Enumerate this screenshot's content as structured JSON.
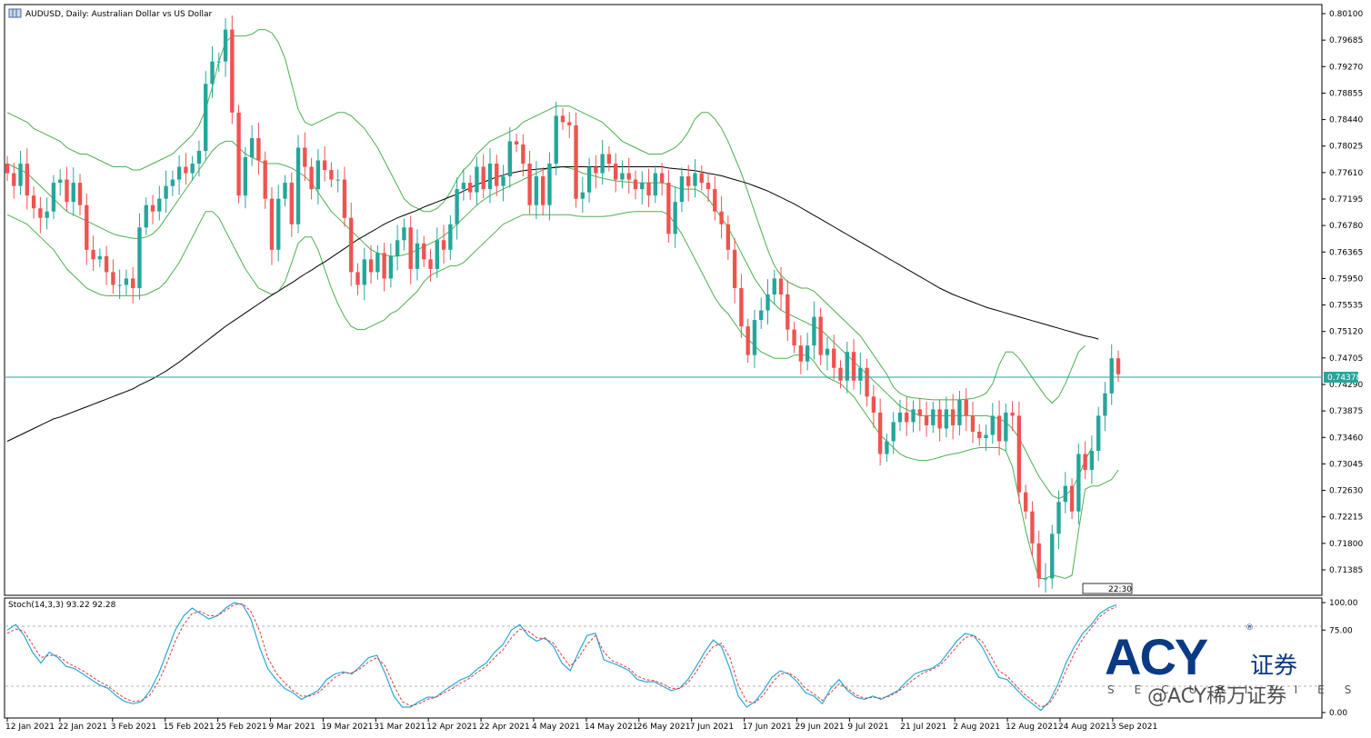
{
  "chart_data": {
    "type": "candlestick",
    "title": "AUDUSD, Daily:  Australian Dollar vs US Dollar",
    "current_price_label": "0.74378",
    "time_label": "22:30",
    "colors": {
      "up": "#26a69a",
      "down": "#ef5350",
      "bands": "#4caf50",
      "ma": "#000000",
      "current_line": "#26a69a"
    },
    "y_ticks": [
      "0.80100",
      "0.79685",
      "0.79270",
      "0.78855",
      "0.78440",
      "0.78025",
      "0.77610",
      "0.77195",
      "0.76780",
      "0.76365",
      "0.75950",
      "0.75535",
      "0.75120",
      "0.74705",
      "0.74290",
      "0.73875",
      "0.73460",
      "0.73045",
      "0.72630",
      "0.72215",
      "0.71800",
      "0.71385"
    ],
    "y_range": [
      0.7103,
      0.8021
    ],
    "x_ticks": [
      "12 Jan 2021",
      "22 Jan 2021",
      "3 Feb 2021",
      "15 Feb 2021",
      "25 Feb 2021",
      "9 Mar 2021",
      "19 Mar 2021",
      "31 Mar 2021",
      "12 Apr 2021",
      "22 Apr 2021",
      "4 May 2021",
      "14 May 2021",
      "26 May 2021",
      "7 Jun 2021",
      "17 Jun 2021",
      "29 Jun 2021",
      "9 Jul 2021",
      "21 Jul 2021",
      "2 Aug 2021",
      "12 Aug 2021",
      "24 Aug 2021",
      "3 Sep 2021"
    ],
    "closes": [
      0.776,
      0.774,
      0.7775,
      0.7725,
      0.7705,
      0.769,
      0.77,
      0.7745,
      0.775,
      0.7715,
      0.7745,
      0.771,
      0.764,
      0.7625,
      0.763,
      0.7605,
      0.7585,
      0.7585,
      0.7595,
      0.758,
      0.7675,
      0.771,
      0.77,
      0.772,
      0.774,
      0.775,
      0.777,
      0.776,
      0.7775,
      0.7795,
      0.79,
      0.7935,
      0.7935,
      0.7985,
      0.7855,
      0.7725,
      0.7785,
      0.7815,
      0.778,
      0.772,
      0.764,
      0.772,
      0.7745,
      0.768,
      0.78,
      0.777,
      0.7735,
      0.778,
      0.7765,
      0.775,
      0.775,
      0.769,
      0.7605,
      0.7585,
      0.7625,
      0.7605,
      0.7635,
      0.7595,
      0.763,
      0.7655,
      0.7675,
      0.761,
      0.765,
      0.7625,
      0.761,
      0.7655,
      0.764,
      0.768,
      0.7735,
      0.7745,
      0.773,
      0.777,
      0.7735,
      0.7775,
      0.774,
      0.7755,
      0.781,
      0.7805,
      0.7775,
      0.771,
      0.7755,
      0.771,
      0.7775,
      0.785,
      0.784,
      0.7835,
      0.772,
      0.773,
      0.777,
      0.776,
      0.779,
      0.7775,
      0.775,
      0.776,
      0.775,
      0.7735,
      0.7745,
      0.7725,
      0.776,
      0.7745,
      0.7665,
      0.7715,
      0.7755,
      0.774,
      0.776,
      0.7745,
      0.7735,
      0.77,
      0.768,
      0.764,
      0.758,
      0.752,
      0.7475,
      0.753,
      0.7545,
      0.757,
      0.7595,
      0.757,
      0.7515,
      0.749,
      0.7465,
      0.749,
      0.7535,
      0.7475,
      0.7485,
      0.7455,
      0.7435,
      0.748,
      0.7435,
      0.7455,
      0.741,
      0.7385,
      0.732,
      0.734,
      0.737,
      0.7385,
      0.737,
      0.739,
      0.738,
      0.7365,
      0.739,
      0.736,
      0.739,
      0.7365,
      0.7405,
      0.738,
      0.7355,
      0.7345,
      0.735,
      0.738,
      0.734,
      0.7385,
      0.738,
      0.726,
      0.723,
      0.718,
      0.7125,
      0.7125,
      0.7195,
      0.7245,
      0.727,
      0.723,
      0.732,
      0.7295,
      0.7325,
      0.738,
      0.7415,
      0.747,
      0.7445
    ],
    "upper_band": [
      0.7855,
      0.785,
      0.7845,
      0.784,
      0.783,
      0.7825,
      0.782,
      0.7815,
      0.781,
      0.78,
      0.7795,
      0.779,
      0.779,
      0.7785,
      0.778,
      0.7775,
      0.777,
      0.777,
      0.777,
      0.7765,
      0.7765,
      0.777,
      0.7775,
      0.778,
      0.7785,
      0.779,
      0.78,
      0.781,
      0.782,
      0.7835,
      0.786,
      0.7895,
      0.7935,
      0.7965,
      0.7975,
      0.7975,
      0.7975,
      0.7978,
      0.7985,
      0.7985,
      0.798,
      0.7965,
      0.794,
      0.79,
      0.786,
      0.784,
      0.7835,
      0.784,
      0.7845,
      0.785,
      0.7855,
      0.7855,
      0.785,
      0.784,
      0.783,
      0.7815,
      0.78,
      0.778,
      0.776,
      0.774,
      0.772,
      0.771,
      0.7705,
      0.77,
      0.77,
      0.7705,
      0.7715,
      0.773,
      0.775,
      0.7765,
      0.7775,
      0.779,
      0.78,
      0.781,
      0.7815,
      0.782,
      0.7825,
      0.783,
      0.784,
      0.7845,
      0.785,
      0.7855,
      0.786,
      0.7865,
      0.7865,
      0.7865,
      0.786,
      0.7855,
      0.785,
      0.7845,
      0.784,
      0.783,
      0.782,
      0.781,
      0.7805,
      0.78,
      0.7795,
      0.779,
      0.779,
      0.779,
      0.7795,
      0.78,
      0.781,
      0.7825,
      0.7845,
      0.7855,
      0.7855,
      0.7845,
      0.783,
      0.781,
      0.7785,
      0.776,
      0.773,
      0.77,
      0.767,
      0.764,
      0.7615,
      0.76,
      0.759,
      0.7585,
      0.758,
      0.758,
      0.7575,
      0.7565,
      0.7555,
      0.7545,
      0.7535,
      0.7525,
      0.7515,
      0.7505,
      0.749,
      0.7475,
      0.746,
      0.7445,
      0.7425,
      0.7415,
      0.741,
      0.7408,
      0.7407,
      0.7406,
      0.7405,
      0.7405,
      0.7405,
      0.7405,
      0.7405,
      0.7406,
      0.7407,
      0.741,
      0.7415,
      0.743,
      0.746,
      0.748,
      0.748,
      0.747,
      0.7455,
      0.744,
      0.7425,
      0.741,
      0.74,
      0.741,
      0.743,
      0.7455,
      0.748,
      0.749
    ],
    "middle_band": [
      0.7775,
      0.777,
      0.7765,
      0.776,
      0.775,
      0.774,
      0.773,
      0.772,
      0.771,
      0.77,
      0.7695,
      0.769,
      0.7685,
      0.768,
      0.7675,
      0.767,
      0.7665,
      0.7662,
      0.766,
      0.7658,
      0.7658,
      0.766,
      0.7665,
      0.7675,
      0.769,
      0.7705,
      0.772,
      0.7735,
      0.775,
      0.7765,
      0.778,
      0.7795,
      0.7805,
      0.781,
      0.781,
      0.78,
      0.779,
      0.7785,
      0.778,
      0.7775,
      0.7775,
      0.7775,
      0.7772,
      0.7768,
      0.7762,
      0.7755,
      0.7745,
      0.773,
      0.7715,
      0.77,
      0.769,
      0.768,
      0.767,
      0.766,
      0.765,
      0.764,
      0.7635,
      0.7632,
      0.763,
      0.763,
      0.7632,
      0.7635,
      0.764,
      0.7645,
      0.765,
      0.7655,
      0.7662,
      0.767,
      0.768,
      0.769,
      0.77,
      0.771,
      0.7718,
      0.7725,
      0.773,
      0.7735,
      0.774,
      0.7745,
      0.775,
      0.7755,
      0.776,
      0.7765,
      0.7768,
      0.777,
      0.777,
      0.7768,
      0.7765,
      0.776,
      0.7758,
      0.7755,
      0.7752,
      0.775,
      0.7748,
      0.7747,
      0.7746,
      0.7745,
      0.7745,
      0.7745,
      0.7745,
      0.7745,
      0.7742,
      0.7738,
      0.7735,
      0.7735,
      0.7735,
      0.773,
      0.772,
      0.7705,
      0.769,
      0.7675,
      0.7655,
      0.7635,
      0.7615,
      0.7595,
      0.758,
      0.7565,
      0.7555,
      0.7545,
      0.754,
      0.7535,
      0.753,
      0.7525,
      0.752,
      0.7515,
      0.7505,
      0.7495,
      0.7485,
      0.7475,
      0.7465,
      0.7455,
      0.7445,
      0.7435,
      0.7425,
      0.7415,
      0.7405,
      0.7395,
      0.739,
      0.7385,
      0.738,
      0.738,
      0.738,
      0.738,
      0.738,
      0.738,
      0.738,
      0.738,
      0.738,
      0.738,
      0.738,
      0.7378,
      0.7375,
      0.737,
      0.736,
      0.7345,
      0.7325,
      0.7305,
      0.7285,
      0.727,
      0.7255,
      0.725,
      0.7255,
      0.7265,
      0.7285,
      0.731,
      0.733
    ],
    "lower_band": [
      0.7695,
      0.769,
      0.7685,
      0.768,
      0.767,
      0.766,
      0.765,
      0.764,
      0.7625,
      0.761,
      0.76,
      0.759,
      0.758,
      0.7575,
      0.757,
      0.7568,
      0.7568,
      0.7568,
      0.7568,
      0.7568,
      0.7568,
      0.757,
      0.7575,
      0.758,
      0.759,
      0.7605,
      0.762,
      0.764,
      0.766,
      0.768,
      0.77,
      0.77,
      0.769,
      0.767,
      0.765,
      0.763,
      0.761,
      0.7595,
      0.758,
      0.7575,
      0.757,
      0.7575,
      0.759,
      0.762,
      0.765,
      0.766,
      0.766,
      0.764,
      0.761,
      0.758,
      0.7555,
      0.7535,
      0.752,
      0.7515,
      0.7515,
      0.752,
      0.7525,
      0.753,
      0.754,
      0.7545,
      0.7555,
      0.7565,
      0.7575,
      0.759,
      0.76,
      0.7605,
      0.761,
      0.7615,
      0.7615,
      0.762,
      0.763,
      0.764,
      0.765,
      0.766,
      0.767,
      0.768,
      0.7685,
      0.769,
      0.7695,
      0.7695,
      0.7695,
      0.7695,
      0.7695,
      0.7695,
      0.7695,
      0.7695,
      0.7693,
      0.7692,
      0.7692,
      0.7692,
      0.7692,
      0.7693,
      0.7695,
      0.7697,
      0.7699,
      0.77,
      0.77,
      0.77,
      0.77,
      0.77,
      0.7695,
      0.768,
      0.7665,
      0.7645,
      0.7625,
      0.7605,
      0.7585,
      0.7565,
      0.755,
      0.754,
      0.7525,
      0.751,
      0.75,
      0.749,
      0.748,
      0.7475,
      0.747,
      0.747,
      0.747,
      0.7475,
      0.7475,
      0.7475,
      0.7465,
      0.745,
      0.744,
      0.7435,
      0.743,
      0.742,
      0.741,
      0.7395,
      0.738,
      0.7365,
      0.735,
      0.734,
      0.733,
      0.732,
      0.7315,
      0.7312,
      0.731,
      0.731,
      0.7312,
      0.7315,
      0.7318,
      0.732,
      0.7322,
      0.7325,
      0.7328,
      0.733,
      0.733,
      0.733,
      0.733,
      0.7325,
      0.73,
      0.725,
      0.72,
      0.716,
      0.7125,
      0.7125,
      0.713,
      0.7128,
      0.7125,
      0.713,
      0.72,
      0.7265,
      0.727,
      0.727,
      0.7275,
      0.728,
      0.7295
    ],
    "ma_line": [
      0.734,
      0.7345,
      0.735,
      0.7355,
      0.736,
      0.7365,
      0.737,
      0.7375,
      0.7378,
      0.7382,
      0.7386,
      0.739,
      0.7394,
      0.7398,
      0.7402,
      0.7406,
      0.741,
      0.7414,
      0.7418,
      0.7422,
      0.7428,
      0.7433,
      0.7438,
      0.7444,
      0.745,
      0.7457,
      0.7464,
      0.7472,
      0.748,
      0.7488,
      0.7496,
      0.7504,
      0.7512,
      0.752,
      0.7527,
      0.7534,
      0.7541,
      0.7548,
      0.7555,
      0.7562,
      0.7569,
      0.7575,
      0.7582,
      0.7588,
      0.7595,
      0.7602,
      0.7608,
      0.7615,
      0.7621,
      0.7628,
      0.7635,
      0.7642,
      0.7649,
      0.7656,
      0.7662,
      0.7668,
      0.7674,
      0.768,
      0.7685,
      0.769,
      0.7694,
      0.7698,
      0.7702,
      0.7707,
      0.7711,
      0.7715,
      0.7719,
      0.7723,
      0.7727,
      0.7732,
      0.7737,
      0.7742,
      0.7746,
      0.775,
      0.7754,
      0.7757,
      0.776,
      0.7762,
      0.7764,
      0.7765,
      0.7766,
      0.7767,
      0.7768,
      0.7769,
      0.777,
      0.777,
      0.777,
      0.777,
      0.777,
      0.777,
      0.777,
      0.777,
      0.777,
      0.777,
      0.777,
      0.777,
      0.777,
      0.777,
      0.777,
      0.777,
      0.7768,
      0.7767,
      0.7766,
      0.7765,
      0.7764,
      0.7762,
      0.776,
      0.7758,
      0.7756,
      0.7753,
      0.775,
      0.7747,
      0.7744,
      0.774,
      0.7736,
      0.7732,
      0.7727,
      0.7722,
      0.7717,
      0.7712,
      0.7706,
      0.77,
      0.7694,
      0.7688,
      0.7682,
      0.7676,
      0.767,
      0.7664,
      0.7658,
      0.7652,
      0.7646,
      0.764,
      0.7634,
      0.7628,
      0.7622,
      0.7616,
      0.761,
      0.7604,
      0.7598,
      0.7592,
      0.7586,
      0.758,
      0.7575,
      0.757,
      0.7566,
      0.7562,
      0.7558,
      0.7554,
      0.755,
      0.7547,
      0.7544,
      0.7541,
      0.7538,
      0.7535,
      0.7532,
      0.7529,
      0.7526,
      0.7523,
      0.752,
      0.7517,
      0.7514,
      0.7511,
      0.7508,
      0.7505,
      0.7503,
      0.75
    ],
    "stoch": {
      "label": "Stoch(14,3,3) 93.22 92.28",
      "y_ticks": [
        "100.00",
        "75.00",
        "0.00"
      ],
      "levels": [
        80,
        20
      ],
      "k": [
        75,
        80,
        70,
        55,
        45,
        55,
        50,
        42,
        40,
        35,
        30,
        25,
        22,
        15,
        10,
        8,
        10,
        20,
        35,
        55,
        75,
        88,
        95,
        90,
        85,
        88,
        95,
        100,
        98,
        85,
        60,
        40,
        30,
        22,
        18,
        12,
        16,
        20,
        30,
        35,
        37,
        35,
        42,
        50,
        52,
        35,
        15,
        5,
        5,
        10,
        14,
        14,
        20,
        25,
        30,
        33,
        40,
        45,
        55,
        62,
        75,
        80,
        70,
        65,
        68,
        60,
        45,
        38,
        55,
        70,
        72,
        48,
        45,
        42,
        38,
        30,
        28,
        28,
        24,
        20,
        22,
        30,
        42,
        55,
        66,
        60,
        40,
        15,
        5,
        10,
        20,
        32,
        38,
        35,
        28,
        18,
        15,
        8,
        22,
        30,
        20,
        14,
        12,
        15,
        12,
        16,
        20,
        28,
        35,
        38,
        40,
        45,
        55,
        65,
        72,
        70,
        60,
        45,
        32,
        30,
        22,
        14,
        8,
        2,
        10,
        25,
        45,
        60,
        72,
        80,
        90,
        95,
        98
      ],
      "d": [
        72,
        76,
        74,
        62,
        50,
        52,
        52,
        46,
        42,
        38,
        33,
        28,
        24,
        18,
        13,
        10,
        11,
        16,
        28,
        45,
        65,
        80,
        90,
        92,
        88,
        88,
        93,
        98,
        99,
        92,
        75,
        50,
        36,
        27,
        20,
        15,
        15,
        18,
        25,
        32,
        36,
        36,
        40,
        46,
        50,
        42,
        25,
        10,
        6,
        8,
        12,
        14,
        18,
        22,
        27,
        31,
        37,
        42,
        50,
        57,
        68,
        76,
        74,
        68,
        67,
        63,
        52,
        42,
        50,
        62,
        70,
        55,
        47,
        44,
        40,
        33,
        30,
        29,
        26,
        22,
        22,
        27,
        37,
        50,
        60,
        63,
        50,
        25,
        10,
        9,
        16,
        27,
        35,
        36,
        31,
        22,
        17,
        11,
        18,
        26,
        22,
        16,
        13,
        14,
        13,
        15,
        19,
        25,
        31,
        36,
        39,
        43,
        51,
        60,
        68,
        70,
        65,
        52,
        38,
        33,
        25,
        17,
        11,
        5,
        8,
        20,
        38,
        54,
        67,
        77,
        87,
        93,
        96
      ]
    },
    "brand": {
      "logo": "ACY",
      "logo_cn": "证券",
      "logo_reg": "®",
      "logo_sub": "SECURITIES",
      "watermark": "@ACY稀万证券"
    }
  }
}
